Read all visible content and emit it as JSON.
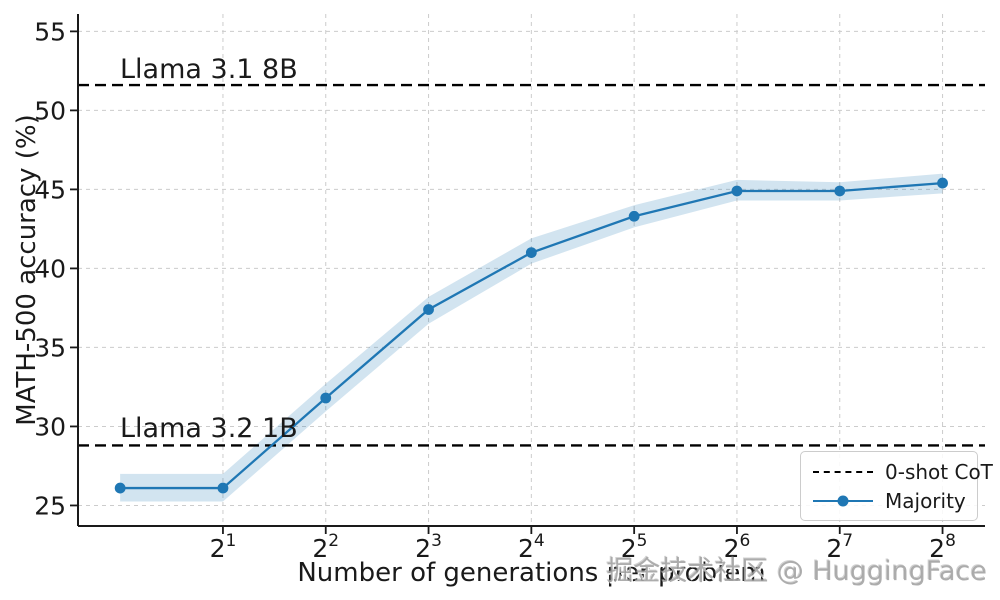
{
  "figure": {
    "background": "#ffffff",
    "watermark": "掘金技术社区 @ HuggingFace"
  },
  "chart_data": {
    "type": "line",
    "title": "",
    "xlabel": "Number of generations per problem",
    "ylabel": "MATH-500 accuracy (%)",
    "x_scale": "log2",
    "x_tick_base": "2",
    "x_exponents": [
      0,
      1,
      2,
      3,
      4,
      5,
      6,
      7,
      8
    ],
    "x_values": [
      1,
      2,
      4,
      8,
      16,
      32,
      64,
      128,
      256
    ],
    "x_tick_exponents": [
      1,
      2,
      3,
      4,
      5,
      6,
      7,
      8
    ],
    "y_ticks": [
      25,
      30,
      35,
      40,
      45,
      50,
      55
    ],
    "ylim": [
      23.7,
      56.1
    ],
    "grid": true,
    "band_opacity": 0.2,
    "colors": {
      "series": "#1f77b4",
      "band": "#1f77b4",
      "grid": "#cccccc",
      "reference": "#000000",
      "axis": "#1a1a1a"
    },
    "series": [
      {
        "name": "Majority",
        "values": [
          26.1,
          26.1,
          31.8,
          37.4,
          41.0,
          43.3,
          44.9,
          44.9,
          45.4
        ],
        "band_upper": [
          27.0,
          27.0,
          32.7,
          38.2,
          41.9,
          44.0,
          45.6,
          45.45,
          46.0
        ],
        "band_lower": [
          25.25,
          25.25,
          30.95,
          36.5,
          40.3,
          42.6,
          44.3,
          44.3,
          44.75
        ]
      }
    ],
    "reference_lines": [
      {
        "label": "Llama 3.1 8B",
        "value": 51.6,
        "style": "dashed"
      },
      {
        "label": "Llama 3.2 1B",
        "value": 28.8,
        "style": "dashed"
      }
    ],
    "legend": {
      "position": "lower right",
      "items": [
        {
          "label": "0-shot CoT",
          "style": "dashed-black-line"
        },
        {
          "label": "Majority",
          "style": "blue-line-circle-marker"
        }
      ]
    }
  }
}
